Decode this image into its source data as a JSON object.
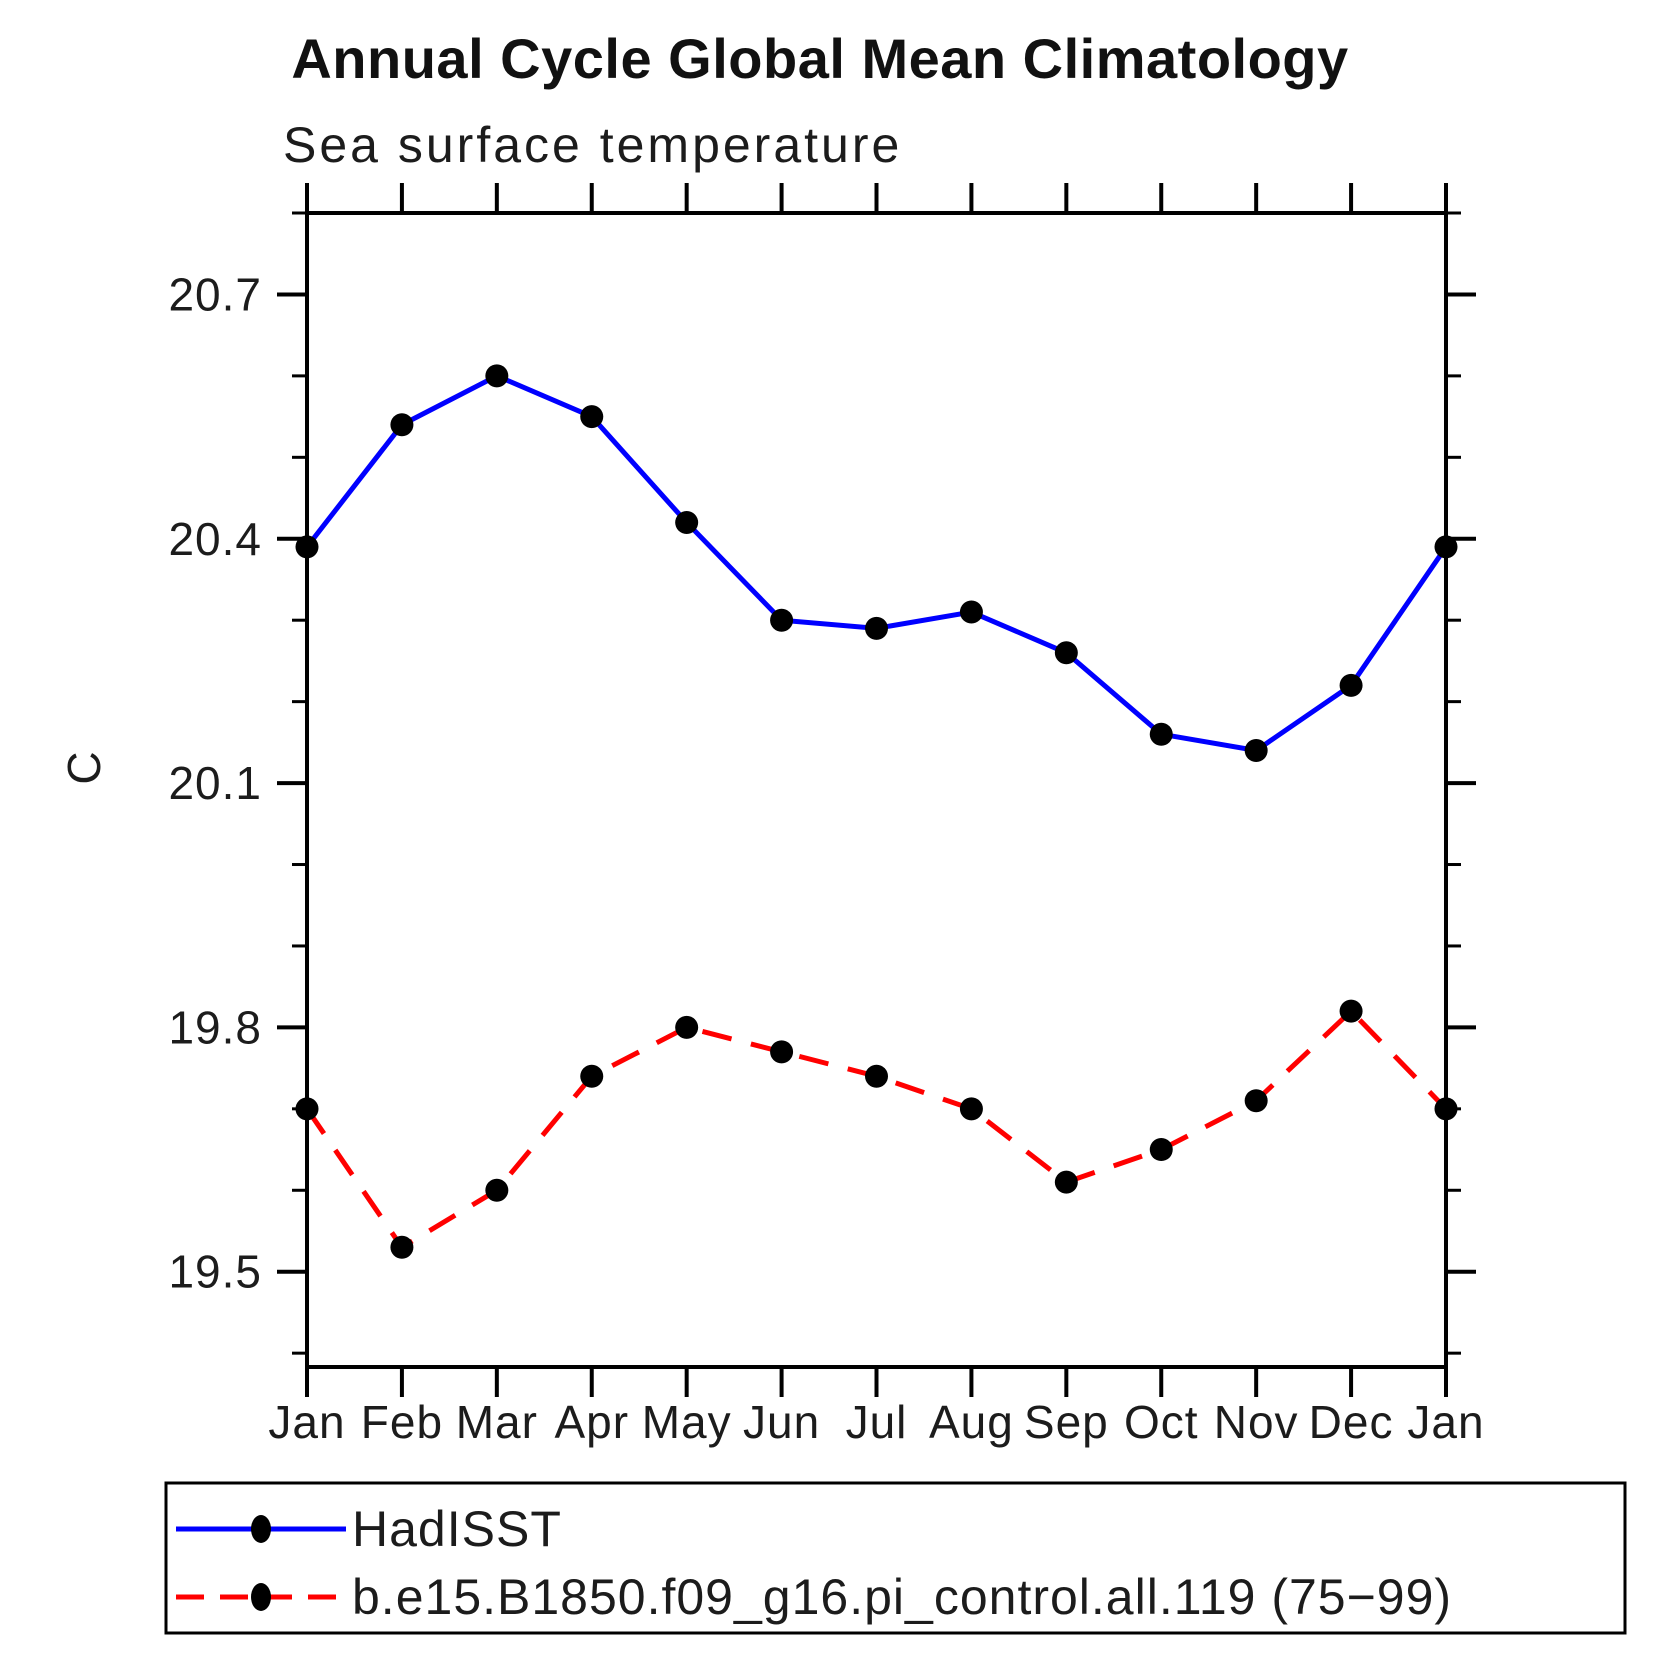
{
  "page": {
    "background_color": "#ffffff",
    "plot_frame_color": "#000000"
  },
  "header": {
    "title": "Annual Cycle Global Mean Climatology",
    "subtitle": "Sea surface temperature"
  },
  "chart_data": {
    "type": "line",
    "title": "Annual Cycle Global Mean Climatology",
    "subtitle": "Sea surface temperature",
    "xlabel": "",
    "ylabel": "C",
    "categories": [
      "Jan",
      "Feb",
      "Mar",
      "Apr",
      "May",
      "Jun",
      "Jul",
      "Aug",
      "Sep",
      "Oct",
      "Nov",
      "Dec",
      "Jan"
    ],
    "ylim": [
      19.383,
      20.8
    ],
    "y_major_ticks": [
      20.7,
      20.4,
      20.1,
      19.8,
      19.5
    ],
    "y_major_tick_labels": [
      "20.7",
      "20.4",
      "20.1",
      "19.8",
      "19.5"
    ],
    "y_minor_ticks": [
      20.8,
      20.6,
      20.5,
      20.3,
      20.2,
      20.0,
      19.9,
      19.7,
      19.6,
      19.4
    ],
    "grid": false,
    "legend_position": "bottom-left-box",
    "marker_color": "#000000",
    "series": [
      {
        "name": "HadISST",
        "color": "#0000ff",
        "line_style": "solid",
        "marker": "circle",
        "values": [
          20.39,
          20.54,
          20.6,
          20.55,
          20.42,
          20.3,
          20.29,
          20.31,
          20.26,
          20.16,
          20.14,
          20.22,
          20.39
        ]
      },
      {
        "name": "b.e15.B1850.f09_g16.pi_control.all.119 (75−99)",
        "color": "#ff0000",
        "line_style": "dashed",
        "marker": "circle",
        "values": [
          19.7,
          19.53,
          19.6,
          19.74,
          19.8,
          19.77,
          19.74,
          19.7,
          19.61,
          19.65,
          19.71,
          19.82,
          19.7
        ]
      }
    ]
  }
}
